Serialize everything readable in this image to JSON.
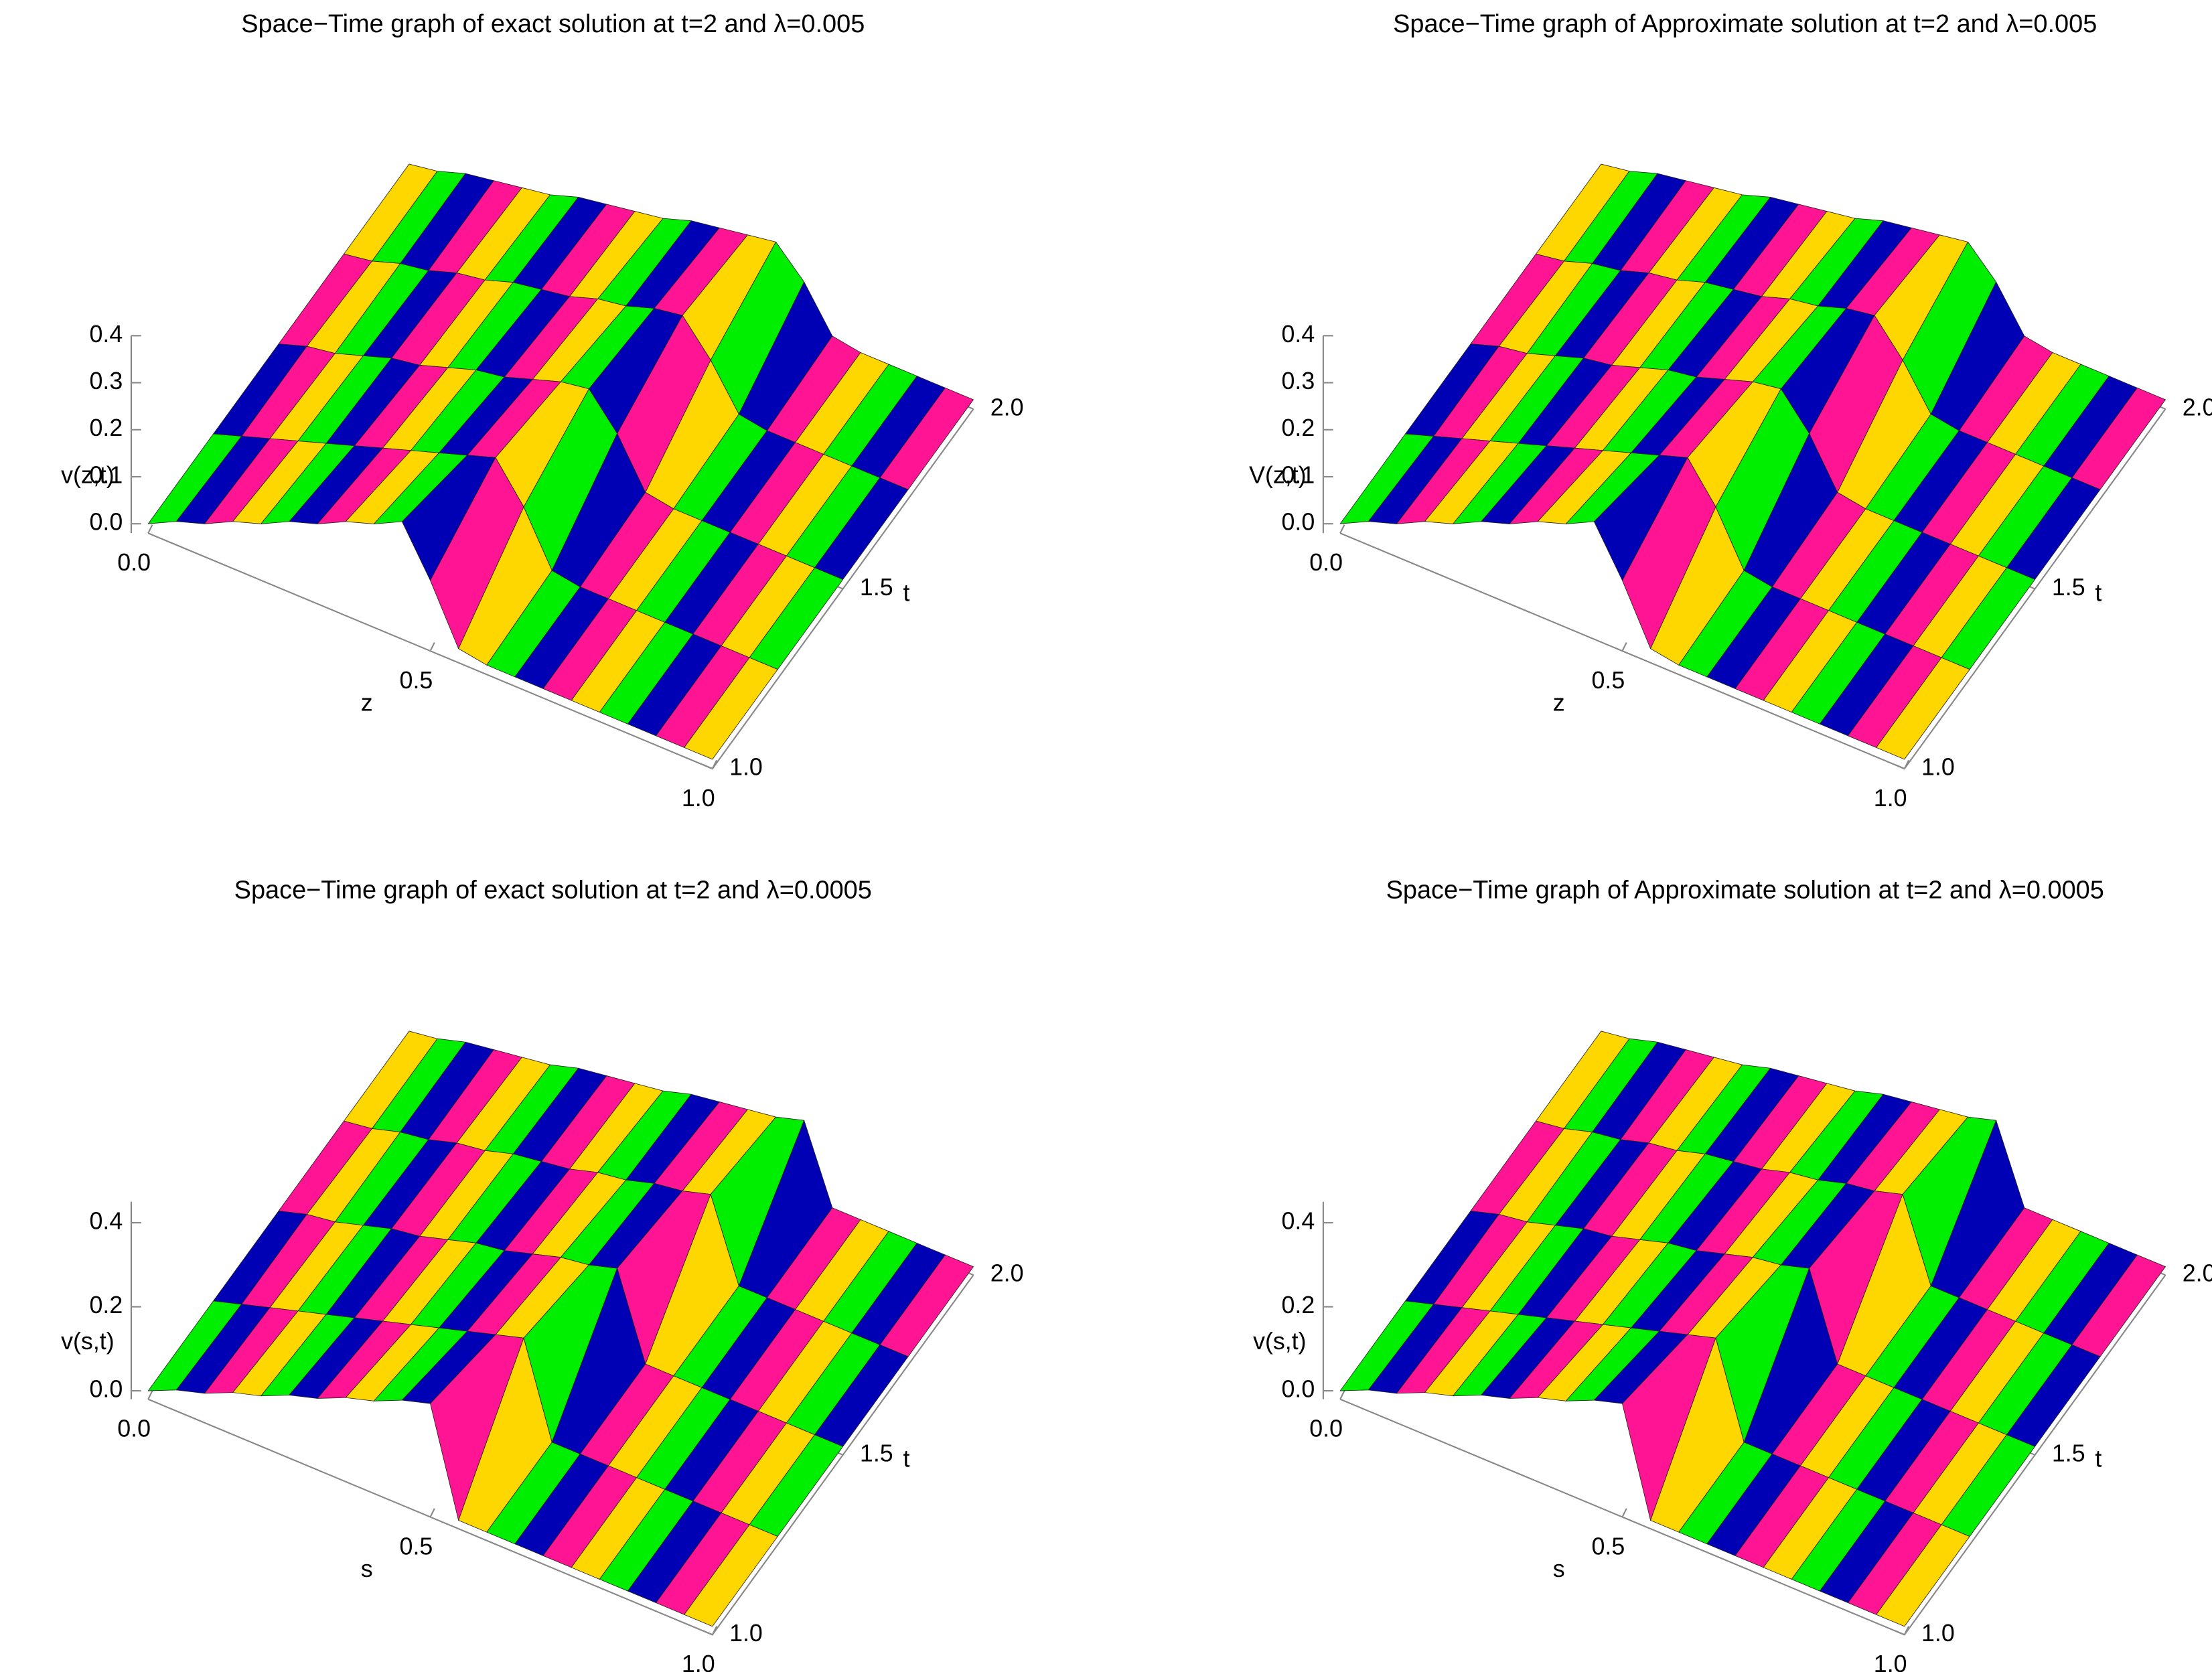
{
  "chart_data": [
    {
      "type": "surface3d",
      "title": "Space−Time graph of exact solution at t=2 and λ=0.005",
      "xlabel": "z",
      "ylabel": "t",
      "zlabel": "v(z,t)",
      "colors": [
        "#00ee00",
        "#0000b4",
        "#ff1493",
        "#ffd700"
      ],
      "x": [
        0,
        0.05,
        0.1,
        0.15,
        0.2,
        0.25,
        0.3,
        0.35,
        0.4,
        0.45,
        0.5,
        0.55,
        0.6,
        0.65,
        0.7,
        0.75,
        0.8,
        0.85,
        0.9,
        0.95,
        1
      ],
      "y": [
        1,
        1.25,
        1.5,
        1.75,
        2
      ],
      "values": [
        [
          0,
          0.03,
          0.05,
          0.08,
          0.1,
          0.13,
          0.15,
          0.18,
          0.2,
          0.23,
          0.13,
          0.01,
          0,
          0,
          0,
          0,
          0,
          0,
          0,
          0,
          0
        ],
        [
          0,
          0.02,
          0.04,
          0.06,
          0.08,
          0.1,
          0.12,
          0.14,
          0.16,
          0.18,
          0.2,
          0.12,
          0.01,
          0,
          0,
          0,
          0,
          0,
          0,
          0,
          0
        ],
        [
          0,
          0.02,
          0.03,
          0.05,
          0.07,
          0.08,
          0.1,
          0.12,
          0.13,
          0.15,
          0.17,
          0.18,
          0.11,
          0.01,
          0,
          0,
          0,
          0,
          0,
          0,
          0
        ],
        [
          0,
          0.01,
          0.03,
          0.04,
          0.06,
          0.07,
          0.09,
          0.1,
          0.11,
          0.13,
          0.14,
          0.16,
          0.17,
          0.1,
          0.01,
          0,
          0,
          0,
          0,
          0,
          0
        ],
        [
          0,
          0.01,
          0.03,
          0.04,
          0.05,
          0.06,
          0.08,
          0.09,
          0.1,
          0.11,
          0.13,
          0.14,
          0.15,
          0.16,
          0.1,
          0.01,
          0,
          0,
          0,
          0,
          0
        ]
      ],
      "xlim": [
        0,
        1
      ],
      "ylim": [
        1,
        2
      ],
      "zlim": [
        -0.02,
        0.4
      ],
      "xticks": [
        {
          "value": 0,
          "label": "0.0"
        },
        0.5,
        {
          "value": 1,
          "label": "1.0"
        }
      ],
      "yticks": [
        {
          "value": 1,
          "label": "1.0"
        },
        1.5,
        {
          "value": 2,
          "label": "2.0"
        }
      ],
      "zticks": [
        {
          "value": 0,
          "label": "0.0"
        },
        0.1,
        0.2,
        0.3,
        0.4
      ]
    },
    {
      "type": "surface3d",
      "title": "Space−Time graph of Approximate solution at t=2 and λ=0.005",
      "xlabel": "z",
      "ylabel": "t",
      "zlabel": "V(z,t)",
      "colors": [
        "#00ee00",
        "#0000b4",
        "#ff1493",
        "#ffd700"
      ],
      "x": [
        0,
        0.05,
        0.1,
        0.15,
        0.2,
        0.25,
        0.3,
        0.35,
        0.4,
        0.45,
        0.5,
        0.55,
        0.6,
        0.65,
        0.7,
        0.75,
        0.8,
        0.85,
        0.9,
        0.95,
        1
      ],
      "y": [
        1,
        1.25,
        1.5,
        1.75,
        2
      ],
      "values": [
        [
          0,
          0.03,
          0.05,
          0.08,
          0.1,
          0.13,
          0.15,
          0.18,
          0.2,
          0.23,
          0.13,
          0.01,
          0,
          0,
          0,
          0,
          0,
          0,
          0,
          0,
          0
        ],
        [
          0,
          0.02,
          0.04,
          0.06,
          0.08,
          0.1,
          0.12,
          0.14,
          0.16,
          0.18,
          0.2,
          0.12,
          0.01,
          0,
          0,
          0,
          0,
          0,
          0,
          0,
          0
        ],
        [
          0,
          0.02,
          0.03,
          0.05,
          0.07,
          0.08,
          0.1,
          0.12,
          0.13,
          0.15,
          0.17,
          0.18,
          0.11,
          0.01,
          0,
          0,
          0,
          0,
          0,
          0,
          0
        ],
        [
          0,
          0.01,
          0.03,
          0.04,
          0.06,
          0.07,
          0.09,
          0.1,
          0.11,
          0.13,
          0.14,
          0.16,
          0.17,
          0.1,
          0.01,
          0,
          0,
          0,
          0,
          0,
          0
        ],
        [
          0,
          0.01,
          0.03,
          0.04,
          0.05,
          0.06,
          0.08,
          0.09,
          0.1,
          0.11,
          0.13,
          0.14,
          0.15,
          0.16,
          0.1,
          0.01,
          0,
          0,
          0,
          0,
          0
        ]
      ],
      "xlim": [
        0,
        1
      ],
      "ylim": [
        1,
        2
      ],
      "zlim": [
        -0.02,
        0.4
      ],
      "xticks": [
        {
          "value": 0,
          "label": "0.0"
        },
        0.5,
        {
          "value": 1,
          "label": "1.0"
        }
      ],
      "yticks": [
        {
          "value": 1,
          "label": "1.0"
        },
        1.5,
        {
          "value": 2,
          "label": "2.0"
        }
      ],
      "zticks": [
        {
          "value": 0,
          "label": "0.0"
        },
        0.1,
        0.2,
        0.3,
        0.4
      ]
    },
    {
      "type": "surface3d",
      "title": "Space−Time graph of exact solution at t=2 and λ=0.0005",
      "xlabel": "s",
      "ylabel": "t",
      "zlabel": "v(s,t)",
      "colors": [
        "#00ee00",
        "#0000b4",
        "#ff1493",
        "#ffd700"
      ],
      "x": [
        0,
        0.05,
        0.1,
        0.15,
        0.2,
        0.25,
        0.3,
        0.35,
        0.4,
        0.45,
        0.5,
        0.55,
        0.6,
        0.65,
        0.7,
        0.75,
        0.8,
        0.85,
        0.9,
        0.95,
        1
      ],
      "y": [
        1,
        1.25,
        1.5,
        1.75,
        2
      ],
      "values": [
        [
          0,
          0.03,
          0.05,
          0.08,
          0.1,
          0.13,
          0.15,
          0.18,
          0.2,
          0.23,
          0.25,
          0,
          0,
          0,
          0,
          0,
          0,
          0,
          0,
          0,
          0
        ],
        [
          0,
          0.02,
          0.04,
          0.06,
          0.08,
          0.1,
          0.12,
          0.14,
          0.16,
          0.18,
          0.2,
          0.22,
          0,
          0,
          0,
          0,
          0,
          0,
          0,
          0,
          0
        ],
        [
          0,
          0.02,
          0.03,
          0.05,
          0.07,
          0.08,
          0.1,
          0.12,
          0.13,
          0.15,
          0.17,
          0.18,
          0.2,
          0,
          0,
          0,
          0,
          0,
          0,
          0,
          0
        ],
        [
          0,
          0.01,
          0.03,
          0.04,
          0.06,
          0.07,
          0.09,
          0.1,
          0.11,
          0.13,
          0.14,
          0.16,
          0.17,
          0.19,
          0,
          0,
          0,
          0,
          0,
          0,
          0
        ],
        [
          0,
          0.01,
          0.03,
          0.04,
          0.05,
          0.06,
          0.08,
          0.09,
          0.1,
          0.11,
          0.13,
          0.14,
          0.15,
          0.16,
          0.18,
          0,
          0,
          0,
          0,
          0,
          0
        ]
      ],
      "xlim": [
        0,
        1
      ],
      "ylim": [
        1,
        2
      ],
      "zlim": [
        -0.02,
        0.45
      ],
      "xticks": [
        {
          "value": 0,
          "label": "0.0"
        },
        0.5,
        {
          "value": 1,
          "label": "1.0"
        }
      ],
      "yticks": [
        {
          "value": 1,
          "label": "1.0"
        },
        1.5,
        {
          "value": 2,
          "label": "2.0"
        }
      ],
      "zticks": [
        {
          "value": 0,
          "label": "0.0"
        },
        0.2,
        0.4
      ]
    },
    {
      "type": "surface3d",
      "title": "Space−Time graph of Approximate solution at t=2 and λ=0.0005",
      "xlabel": "s",
      "ylabel": "t",
      "zlabel": "v(s,t)",
      "colors": [
        "#00ee00",
        "#0000b4",
        "#ff1493",
        "#ffd700"
      ],
      "x": [
        0,
        0.05,
        0.1,
        0.15,
        0.2,
        0.25,
        0.3,
        0.35,
        0.4,
        0.45,
        0.5,
        0.55,
        0.6,
        0.65,
        0.7,
        0.75,
        0.8,
        0.85,
        0.9,
        0.95,
        1
      ],
      "y": [
        1,
        1.25,
        1.5,
        1.75,
        2
      ],
      "values": [
        [
          0,
          0.03,
          0.05,
          0.08,
          0.1,
          0.13,
          0.15,
          0.18,
          0.2,
          0.23,
          0.25,
          0,
          0,
          0,
          0,
          0,
          0,
          0,
          0,
          0,
          0
        ],
        [
          0,
          0.02,
          0.04,
          0.06,
          0.08,
          0.1,
          0.12,
          0.14,
          0.16,
          0.18,
          0.2,
          0.22,
          0,
          0,
          0,
          0,
          0,
          0,
          0,
          0,
          0
        ],
        [
          0,
          0.02,
          0.03,
          0.05,
          0.07,
          0.08,
          0.1,
          0.12,
          0.13,
          0.15,
          0.17,
          0.18,
          0.2,
          0,
          0,
          0,
          0,
          0,
          0,
          0,
          0
        ],
        [
          0,
          0.01,
          0.03,
          0.04,
          0.06,
          0.07,
          0.09,
          0.1,
          0.11,
          0.13,
          0.14,
          0.16,
          0.17,
          0.19,
          0,
          0,
          0,
          0,
          0,
          0,
          0
        ],
        [
          0,
          0.01,
          0.03,
          0.04,
          0.05,
          0.06,
          0.08,
          0.09,
          0.1,
          0.11,
          0.13,
          0.14,
          0.15,
          0.16,
          0.18,
          0,
          0,
          0,
          0,
          0,
          0
        ]
      ],
      "xlim": [
        0,
        1
      ],
      "ylim": [
        1,
        2
      ],
      "zlim": [
        -0.02,
        0.45
      ],
      "xticks": [
        {
          "value": 0,
          "label": "0.0"
        },
        0.5,
        {
          "value": 1,
          "label": "1.0"
        }
      ],
      "yticks": [
        {
          "value": 1,
          "label": "1.0"
        },
        1.5,
        {
          "value": 2,
          "label": "2.0"
        }
      ],
      "zticks": [
        {
          "value": 0,
          "label": "0.0"
        },
        0.2,
        0.4
      ]
    }
  ]
}
